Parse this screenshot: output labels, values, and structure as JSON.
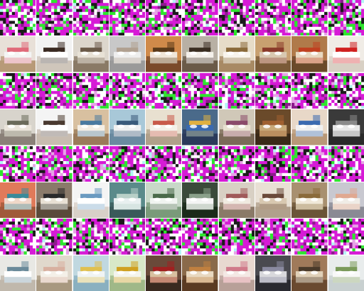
{
  "grid": {
    "columns": 10,
    "rows": 8,
    "row_kinds": [
      "noise",
      "bedroom",
      "noise",
      "bedroom",
      "noise",
      "bedroom",
      "noise",
      "bedroom"
    ]
  },
  "noise_palette": [
    "#d61ad6",
    "#ffffff",
    "#1a1a1a",
    "#2ee62e",
    "#e6a3e6",
    "#8c1a8c",
    "#b3f5f5"
  ],
  "bedroom_tiles": [
    {
      "wall": "#e8e0d8",
      "floor": "#b89a78",
      "bed": "#f4f4f4",
      "accent": "#e06a7a"
    },
    {
      "wall": "#f2f2f2",
      "floor": "#cfc6bb",
      "bed": "#ffffff",
      "accent": "#3a2a22"
    },
    {
      "wall": "#dcd6cc",
      "floor": "#8a7a66",
      "bed": "#e8e2d6",
      "accent": "#6b5a48"
    },
    {
      "wall": "#c8c8c8",
      "floor": "#9a9a9a",
      "bed": "#eeeeee",
      "accent": "#b0a090"
    },
    {
      "wall": "#d08a4a",
      "floor": "#7a4a2a",
      "bed": "#f0e6d8",
      "accent": "#5a3a1a"
    },
    {
      "wall": "#b8b0a4",
      "floor": "#6a5a48",
      "bed": "#f4f0ea",
      "accent": "#3a2e22"
    },
    {
      "wall": "#e6dcc8",
      "floor": "#a88a64",
      "bed": "#f8f4ec",
      "accent": "#8a6a3a"
    },
    {
      "wall": "#c8a070",
      "floor": "#7a5a38",
      "bed": "#d8c8b0",
      "accent": "#8a3a2a"
    },
    {
      "wall": "#b07a4a",
      "floor": "#6a4a2a",
      "bed": "#e8d8c0",
      "accent": "#c04020"
    },
    {
      "wall": "#f0ece6",
      "floor": "#d8d0c4",
      "bed": "#ffffff",
      "accent": "#d02020"
    },
    {
      "wall": "#d8d4cc",
      "floor": "#8a8078",
      "bed": "#eae4da",
      "accent": "#6a6a5a"
    },
    {
      "wall": "#f4f4f4",
      "floor": "#c8bcb0",
      "bed": "#ffffff",
      "accent": "#4a3a30"
    },
    {
      "wall": "#d8c0a0",
      "floor": "#9a7a5a",
      "bed": "#f4eee4",
      "accent": "#4a7aa0"
    },
    {
      "wall": "#a8c8d8",
      "floor": "#6a8aa0",
      "bed": "#f0f0f0",
      "accent": "#3a5a7a"
    },
    {
      "wall": "#e8e0d0",
      "floor": "#b0a08a",
      "bed": "#f4f0e8",
      "accent": "#c85a4a"
    },
    {
      "wall": "#4a6a8a",
      "floor": "#2a3a5a",
      "bed": "#3a6ab0",
      "accent": "#e0b040"
    },
    {
      "wall": "#d0c8b8",
      "floor": "#7a6a58",
      "bed": "#e8e0d0",
      "accent": "#8a4a6a"
    },
    {
      "wall": "#6a4a2a",
      "floor": "#3a2a18",
      "bed": "#c8a878",
      "accent": "#a06030"
    },
    {
      "wall": "#e8d8c8",
      "floor": "#b89878",
      "bed": "#f0f0f0",
      "accent": "#3a6ab0"
    },
    {
      "wall": "#3a3a3a",
      "floor": "#2a2a2a",
      "bed": "#e8e8e8",
      "accent": "#8a8a8a"
    },
    {
      "wall": "#e07a5a",
      "floor": "#a05a3a",
      "bed": "#f0d8c8",
      "accent": "#3a8a9a"
    },
    {
      "wall": "#8a7a6a",
      "floor": "#5a4a3a",
      "bed": "#e8e0d4",
      "accent": "#2a2a2a"
    },
    {
      "wall": "#f4f4f4",
      "floor": "#d8d0c8",
      "bed": "#ffffff",
      "accent": "#6a9ac0"
    },
    {
      "wall": "#5a8a8a",
      "floor": "#3a5a5a",
      "bed": "#e8f0f0",
      "accent": "#b8d0c8"
    },
    {
      "wall": "#c8d8c8",
      "floor": "#7a9a7a",
      "bed": "#f0f4f0",
      "accent": "#4a6a4a"
    },
    {
      "wall": "#3a4a3a",
      "floor": "#1a2a1a",
      "bed": "#f4f4f4",
      "accent": "#8aa08a"
    },
    {
      "wall": "#d8d0c4",
      "floor": "#8a7a68",
      "bed": "#f0eae0",
      "accent": "#a05a5a"
    },
    {
      "wall": "#e8e0d4",
      "floor": "#b0a08c",
      "bed": "#d8c8b0",
      "accent": "#6a4a3a"
    },
    {
      "wall": "#a89070",
      "floor": "#6a5438",
      "bed": "#f0e8d8",
      "accent": "#8a6a3a"
    },
    {
      "wall": "#c8c8d0",
      "floor": "#8a8a94",
      "bed": "#f0ece6",
      "accent": "#e0a890"
    },
    {
      "wall": "#e8e8e4",
      "floor": "#c0b8ac",
      "bed": "#ffffff",
      "accent": "#6a8a9a"
    },
    {
      "wall": "#e0d8cc",
      "floor": "#a89880",
      "bed": "#f4f0e8",
      "accent": "#d8b0a0"
    },
    {
      "wall": "#c0d8e0",
      "floor": "#8ab0c0",
      "bed": "#f0f4f4",
      "accent": "#e0c050"
    },
    {
      "wall": "#d8e8c8",
      "floor": "#a0b888",
      "bed": "#f4f4ec",
      "accent": "#d0a020"
    },
    {
      "wall": "#6a4a3a",
      "floor": "#3a2a20",
      "bed": "#d8c0a0",
      "accent": "#a02020"
    },
    {
      "wall": "#8a6a4a",
      "floor": "#5a3a22",
      "bed": "#e8d8c0",
      "accent": "#c08040"
    },
    {
      "wall": "#e8d8d0",
      "floor": "#b8a098",
      "bed": "#f4e8e4",
      "accent": "#d07a8a"
    },
    {
      "wall": "#4a4a50",
      "floor": "#2a2a30",
      "bed": "#d8d8dc",
      "accent": "#8a8aa0"
    },
    {
      "wall": "#a07a5a",
      "floor": "#6a4a30",
      "bed": "#e0d0b8",
      "accent": "#4a3a2a"
    },
    {
      "wall": "#e8ecec",
      "floor": "#c8d0d0",
      "bed": "#f8f8f8",
      "accent": "#7a9a5a"
    }
  ]
}
